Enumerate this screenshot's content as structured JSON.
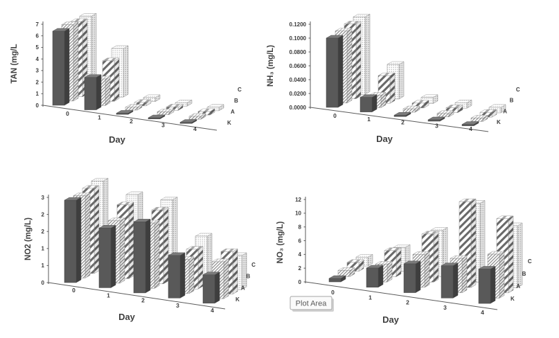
{
  "figure": {
    "background": "#ffffff"
  },
  "plot_area_tooltip": "Plot Area",
  "series_styles": {
    "K": {
      "type": "solid",
      "front": "#595959",
      "top": "#7b7b7b",
      "side": "#3e3e3e"
    },
    "A": {
      "type": "thin-diagonal-hatch",
      "bg": "#ffffff",
      "line": "#8f8f8f"
    },
    "B": {
      "type": "wide-diagonal-stripe",
      "bg": "#ffffff",
      "line": "#696969"
    },
    "C": {
      "type": "dot-grid",
      "bg": "#ffffff",
      "dot": "#9c9c9c"
    }
  },
  "chart_data": [
    {
      "id": "tan",
      "type": "bar",
      "projection": "3d-column",
      "title": "",
      "ylabel": "TAN (mg/L",
      "xlabel": "Day",
      "categories": [
        "0",
        "1",
        "2",
        "3",
        "4"
      ],
      "series": [
        {
          "name": "K",
          "values": [
            6.4,
            2.8,
            0.1,
            0.1,
            0.1
          ]
        },
        {
          "name": "A",
          "values": [
            6.6,
            2.3,
            0.25,
            0.25,
            0.25
          ]
        },
        {
          "name": "B",
          "values": [
            6.5,
            3.5,
            0.3,
            0.3,
            0.3
          ]
        },
        {
          "name": "C",
          "values": [
            6.6,
            4.2,
            0.35,
            0.3,
            0.3
          ]
        }
      ],
      "ylim": [
        0,
        7
      ],
      "ytick_labels": [
        "0",
        "1",
        "2",
        "3",
        "4",
        "5",
        "6",
        "7"
      ],
      "legend_position": "right-depth-axis",
      "grid": false
    },
    {
      "id": "nh3",
      "type": "bar",
      "projection": "3d-column",
      "title": "",
      "ylabel": "NH₃ (mg/L)",
      "xlabel": "Day",
      "categories": [
        "0",
        "1",
        "2",
        "3",
        "4"
      ],
      "series": [
        {
          "name": "K",
          "values": [
            0.1,
            0.021,
            0.002,
            0.002,
            0.002
          ]
        },
        {
          "name": "A",
          "values": [
            0.104,
            0.018,
            0.005,
            0.005,
            0.005
          ]
        },
        {
          "name": "B",
          "values": [
            0.108,
            0.04,
            0.007,
            0.007,
            0.007
          ]
        },
        {
          "name": "C",
          "values": [
            0.112,
            0.05,
            0.009,
            0.008,
            0.008
          ]
        }
      ],
      "ylim": [
        0,
        0.12
      ],
      "ytick_labels": [
        "0.0000",
        "0.0200",
        "0.0400",
        "0.0600",
        "0.0800",
        "0.1000",
        "0.1200"
      ],
      "legend_position": "right-depth-axis",
      "grid": false
    },
    {
      "id": "no2",
      "type": "bar",
      "projection": "3d-column",
      "title": "",
      "ylabel": "NO2 (mg/L)",
      "xlabel": "Day",
      "categories": [
        "0",
        "1",
        "2",
        "3",
        "4"
      ],
      "series": [
        {
          "name": "K",
          "values": [
            2.9,
            2.1,
            2.5,
            1.5,
            1.0
          ]
        },
        {
          "name": "A",
          "values": [
            2.9,
            2.2,
            2.3,
            1.2,
            1.3
          ]
        },
        {
          "name": "B",
          "values": [
            3.0,
            2.6,
            2.6,
            1.4,
            1.5
          ]
        },
        {
          "name": "C",
          "values": [
            3.1,
            2.8,
            2.8,
            1.7,
            1.2
          ]
        }
      ],
      "ylim": [
        0,
        3
      ],
      "ytick_labels": [
        "0",
        "1",
        "1",
        "2",
        "2",
        "3"
      ],
      "legend_position": "right-depth-axis",
      "grid": false
    },
    {
      "id": "no3",
      "type": "bar",
      "projection": "3d-column",
      "title": "",
      "ylabel": "NO₃ (mg/L)",
      "xlabel": "Day",
      "categories": [
        "0",
        "1",
        "2",
        "3",
        "4"
      ],
      "series": [
        {
          "name": "K",
          "values": [
            0.5,
            2.8,
            4.2,
            4.7,
            5.0
          ]
        },
        {
          "name": "A",
          "values": [
            0.9,
            2.6,
            4.8,
            5.0,
            6.4
          ]
        },
        {
          "name": "B",
          "values": [
            1.3,
            3.8,
            7.0,
            12.5,
            10.8
          ]
        },
        {
          "name": "C",
          "values": [
            1.3,
            3.5,
            6.8,
            11.5,
            9.0
          ]
        }
      ],
      "ylim": [
        0,
        12
      ],
      "ytick_labels": [
        "0",
        "2",
        "4",
        "6",
        "8",
        "10",
        "12"
      ],
      "legend_position": "right-depth-axis",
      "grid": false
    }
  ]
}
